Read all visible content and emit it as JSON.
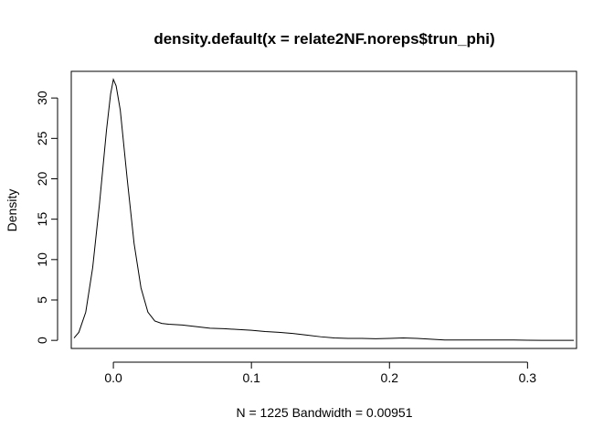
{
  "chart_data": {
    "type": "line",
    "title": "density.default(x = relate2NF.noreps$trun_phi)",
    "xlabel": "N = 1225   Bandwidth = 0.00951",
    "ylabel": "Density",
    "xlim": [
      -0.0305,
      0.3355
    ],
    "ylim": [
      -1.0,
      33.3
    ],
    "x_ticks": [
      0.0,
      0.1,
      0.2,
      0.3
    ],
    "x_tick_labels": [
      "0.0",
      "0.1",
      "0.2",
      "0.3"
    ],
    "y_ticks": [
      0,
      5,
      10,
      15,
      20,
      25,
      30
    ],
    "y_tick_labels": [
      "0",
      "5",
      "10",
      "15",
      "20",
      "25",
      "30"
    ],
    "grid": false,
    "legend": "none",
    "series": [
      {
        "color": "#000000",
        "x": [
          -0.0285,
          -0.025,
          -0.02,
          -0.015,
          -0.01,
          -0.005,
          -0.002,
          0.0,
          0.002,
          0.005,
          0.01,
          0.015,
          0.02,
          0.025,
          0.03,
          0.035,
          0.04,
          0.05,
          0.06,
          0.07,
          0.08,
          0.09,
          0.1,
          0.11,
          0.12,
          0.13,
          0.14,
          0.15,
          0.16,
          0.17,
          0.18,
          0.19,
          0.2,
          0.21,
          0.22,
          0.23,
          0.24,
          0.25,
          0.26,
          0.27,
          0.28,
          0.29,
          0.3,
          0.31,
          0.32,
          0.3335
        ],
        "y": [
          0.3,
          1.0,
          3.5,
          9.0,
          17.0,
          26.0,
          30.5,
          32.3,
          31.5,
          28.5,
          20.0,
          12.0,
          6.5,
          3.5,
          2.4,
          2.1,
          2.0,
          1.9,
          1.7,
          1.5,
          1.45,
          1.35,
          1.25,
          1.1,
          1.0,
          0.85,
          0.65,
          0.45,
          0.3,
          0.25,
          0.25,
          0.2,
          0.25,
          0.3,
          0.25,
          0.15,
          0.05,
          0.05,
          0.05,
          0.05,
          0.05,
          0.05,
          0.02,
          0.0,
          0.0,
          0.0
        ]
      }
    ]
  }
}
